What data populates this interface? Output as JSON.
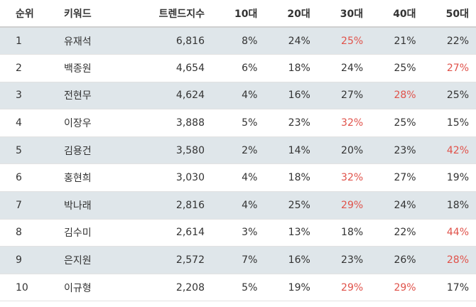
{
  "headers": {
    "rank": "순위",
    "keyword": "키워드",
    "trend_index": "트렌드지수",
    "age10": "10대",
    "age20": "20대",
    "age30": "30대",
    "age40": "40대",
    "age50": "50대"
  },
  "highlight_color": "#e0524a",
  "rows": [
    {
      "rank": "1",
      "keyword": "유재석",
      "trend_index": "6,816",
      "a10": "8%",
      "a20": "24%",
      "a30": "25%",
      "a40": "21%",
      "a50": "22%",
      "highlight": "a30"
    },
    {
      "rank": "2",
      "keyword": "백종원",
      "trend_index": "4,654",
      "a10": "6%",
      "a20": "18%",
      "a30": "24%",
      "a40": "25%",
      "a50": "27%",
      "highlight": "a50"
    },
    {
      "rank": "3",
      "keyword": "전현무",
      "trend_index": "4,624",
      "a10": "4%",
      "a20": "16%",
      "a30": "27%",
      "a40": "28%",
      "a50": "25%",
      "highlight": "a40"
    },
    {
      "rank": "4",
      "keyword": "이장우",
      "trend_index": "3,888",
      "a10": "5%",
      "a20": "23%",
      "a30": "32%",
      "a40": "25%",
      "a50": "15%",
      "highlight": "a30"
    },
    {
      "rank": "5",
      "keyword": "김용건",
      "trend_index": "3,580",
      "a10": "2%",
      "a20": "14%",
      "a30": "20%",
      "a40": "23%",
      "a50": "42%",
      "highlight": "a50"
    },
    {
      "rank": "6",
      "keyword": "홍현희",
      "trend_index": "3,030",
      "a10": "4%",
      "a20": "18%",
      "a30": "32%",
      "a40": "27%",
      "a50": "19%",
      "highlight": "a30"
    },
    {
      "rank": "7",
      "keyword": "박나래",
      "trend_index": "2,816",
      "a10": "4%",
      "a20": "25%",
      "a30": "29%",
      "a40": "24%",
      "a50": "18%",
      "highlight": "a30"
    },
    {
      "rank": "8",
      "keyword": "김수미",
      "trend_index": "2,614",
      "a10": "3%",
      "a20": "13%",
      "a30": "18%",
      "a40": "22%",
      "a50": "44%",
      "highlight": "a50"
    },
    {
      "rank": "9",
      "keyword": "은지원",
      "trend_index": "2,572",
      "a10": "7%",
      "a20": "16%",
      "a30": "23%",
      "a40": "26%",
      "a50": "28%",
      "highlight": "a50"
    },
    {
      "rank": "10",
      "keyword": "이규형",
      "trend_index": "2,208",
      "a10": "5%",
      "a20": "19%",
      "a30": "29%",
      "a40": "29%",
      "a50": "17%",
      "highlight": "a30,a40"
    }
  ]
}
